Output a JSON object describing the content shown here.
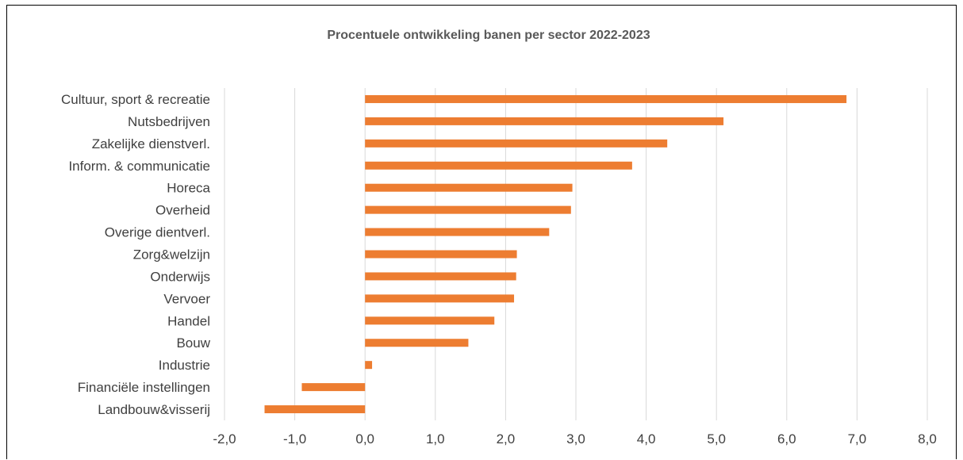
{
  "chart_data": {
    "type": "bar",
    "orientation": "horizontal",
    "title": "Procentuele ontwikkeling banen per sector 2022-2023",
    "categories": [
      "Cultuur, sport & recreatie",
      "Nutsbedrijven",
      "Zakelijke dienstverl.",
      "Inform. & communicatie",
      "Horeca",
      "Overheid",
      "Overige dientverl.",
      "Zorg&welzijn",
      "Onderwijs",
      "Vervoer",
      "Handel",
      "Bouw",
      "Industrie",
      "Financiële instellingen",
      "Landbouw&visserij"
    ],
    "values": [
      6.85,
      5.1,
      4.3,
      3.8,
      2.95,
      2.93,
      2.62,
      2.16,
      2.15,
      2.12,
      1.84,
      1.47,
      0.1,
      -0.9,
      -1.43
    ],
    "xlim": [
      -2.0,
      8.0
    ],
    "xticks": [
      "-2,0",
      "-1,0",
      "0,0",
      "1,0",
      "2,0",
      "3,0",
      "4,0",
      "5,0",
      "6,0",
      "7,0",
      "8,0"
    ],
    "grid": "vertical",
    "bar_color": "#ED7D31",
    "legend": "none"
  }
}
